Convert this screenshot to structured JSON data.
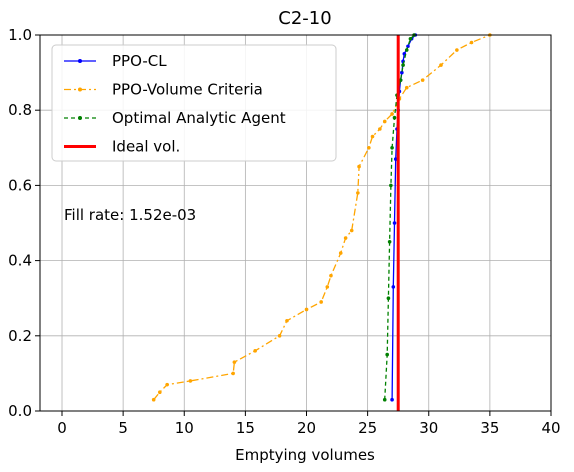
{
  "chart_data": {
    "type": "line",
    "title": "C2-10",
    "xlabel": "Emptying volumes",
    "ylabel": "",
    "xlim": [
      -1.8,
      40
    ],
    "ylim": [
      0,
      1.0
    ],
    "xticks": [
      0,
      5,
      10,
      15,
      20,
      25,
      30,
      35,
      40
    ],
    "yticks": [
      0.0,
      0.2,
      0.4,
      0.6,
      0.8,
      1.0
    ],
    "xtick_labels": [
      "0",
      "5",
      "10",
      "15",
      "20",
      "25",
      "30",
      "35",
      "40"
    ],
    "ytick_labels": [
      "0.0",
      "0.2",
      "0.4",
      "0.6",
      "0.8",
      "1.0"
    ],
    "grid": true,
    "legend_position": "top-left",
    "annotation": "Fill rate: 1.52e-03",
    "series": [
      {
        "name": "PPO-CL",
        "color": "#0000ff",
        "style": "solid",
        "marker": "dot",
        "x": [
          27.0,
          27.1,
          27.2,
          27.3,
          27.4,
          27.5,
          27.6,
          27.7,
          27.8,
          27.9,
          28.0,
          28.3,
          28.6,
          28.9
        ],
        "y": [
          0.03,
          0.33,
          0.5,
          0.67,
          0.75,
          0.8,
          0.85,
          0.88,
          0.9,
          0.93,
          0.95,
          0.97,
          0.99,
          1.0
        ]
      },
      {
        "name": "PPO-Volume Criteria",
        "color": "#ffa500",
        "style": "dashdot",
        "marker": "dot",
        "x": [
          7.5,
          8.0,
          8.6,
          10.5,
          14.0,
          14.1,
          15.8,
          17.8,
          18.4,
          20.0,
          21.2,
          21.7,
          22.0,
          22.8,
          23.2,
          23.7,
          24.2,
          24.3,
          25.1,
          25.4,
          26.0,
          26.4,
          27.0,
          27.6,
          28.2,
          29.5,
          31.0,
          32.3,
          33.5,
          35.0
        ],
        "y": [
          0.03,
          0.05,
          0.07,
          0.08,
          0.1,
          0.13,
          0.16,
          0.2,
          0.24,
          0.27,
          0.29,
          0.33,
          0.36,
          0.42,
          0.46,
          0.48,
          0.58,
          0.65,
          0.7,
          0.73,
          0.75,
          0.77,
          0.79,
          0.83,
          0.86,
          0.88,
          0.92,
          0.96,
          0.98,
          1.0
        ]
      },
      {
        "name": "Optimal Analytic Agent",
        "color": "#008000",
        "style": "dashed",
        "marker": "dot",
        "x": [
          26.4,
          26.6,
          26.7,
          26.8,
          26.9,
          27.0,
          27.2,
          27.4,
          27.7,
          27.9,
          28.2,
          28.5,
          28.8
        ],
        "y": [
          0.03,
          0.15,
          0.3,
          0.45,
          0.6,
          0.7,
          0.78,
          0.84,
          0.88,
          0.92,
          0.96,
          0.99,
          1.0
        ]
      },
      {
        "name": "Ideal vol.",
        "color": "#ff0000",
        "style": "solid-thick",
        "marker": "none",
        "x": [
          27.5,
          27.5
        ],
        "y": [
          0.0,
          1.0
        ]
      }
    ]
  }
}
